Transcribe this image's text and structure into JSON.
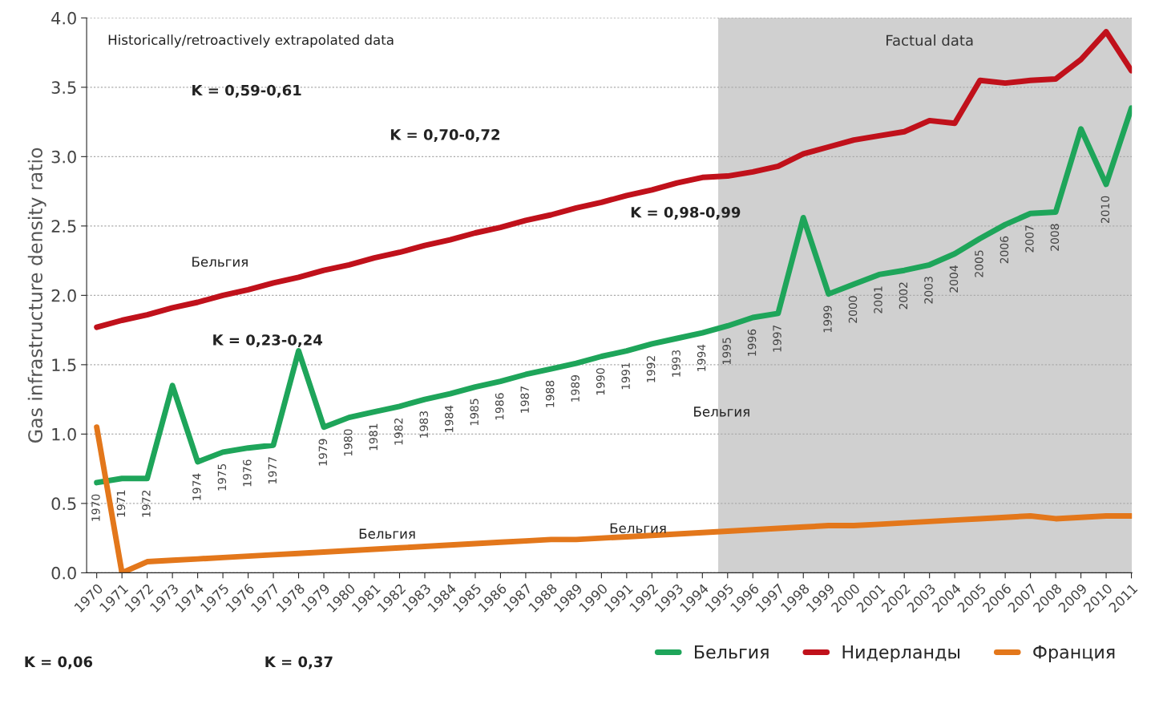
{
  "chart_data": {
    "type": "line",
    "ylabel": "Gas infrastructure density ratio",
    "categories": [
      "1970",
      "1971",
      "1972",
      "1973",
      "1974",
      "1975",
      "1976",
      "1977",
      "1978",
      "1979",
      "1980",
      "1981",
      "1982",
      "1983",
      "1984",
      "1985",
      "1986",
      "1987",
      "1988",
      "1989",
      "1990",
      "1991",
      "1992",
      "1993",
      "1994",
      "1995",
      "1996",
      "1997",
      "1998",
      "1999",
      "2000",
      "2001",
      "2002",
      "2003",
      "2004",
      "2005",
      "2006",
      "2007",
      "2008",
      "2009",
      "2010",
      "2011"
    ],
    "series": [
      {
        "name": "Бельгия",
        "color": "#1ea55a",
        "values": [
          0.65,
          0.68,
          0.68,
          1.35,
          0.8,
          0.87,
          0.9,
          0.92,
          1.6,
          1.05,
          1.12,
          1.16,
          1.2,
          1.25,
          1.29,
          1.34,
          1.38,
          1.43,
          1.47,
          1.51,
          1.56,
          1.6,
          1.65,
          1.69,
          1.73,
          1.78,
          1.84,
          1.87,
          2.56,
          2.01,
          2.08,
          2.15,
          2.18,
          2.22,
          2.3,
          2.41,
          2.51,
          2.59,
          2.6,
          3.2,
          2.8,
          3.35
        ]
      },
      {
        "name": "Нидерланды",
        "color": "#c0111b",
        "values": [
          1.77,
          1.82,
          1.86,
          1.91,
          1.95,
          2.0,
          2.04,
          2.09,
          2.13,
          2.18,
          2.22,
          2.27,
          2.31,
          2.36,
          2.4,
          2.45,
          2.49,
          2.54,
          2.58,
          2.63,
          2.67,
          2.72,
          2.76,
          2.81,
          2.85,
          2.86,
          2.89,
          2.93,
          3.02,
          3.07,
          3.12,
          3.15,
          3.18,
          3.26,
          3.24,
          3.55,
          3.53,
          3.55,
          3.56,
          3.7,
          3.9,
          3.62
        ]
      },
      {
        "name": "Франция",
        "color": "#e3771b",
        "values": [
          1.05,
          0.0,
          0.08,
          0.09,
          0.1,
          0.11,
          0.12,
          0.13,
          0.14,
          0.15,
          0.16,
          0.17,
          0.18,
          0.19,
          0.2,
          0.21,
          0.22,
          0.23,
          0.24,
          0.24,
          0.25,
          0.26,
          0.27,
          0.28,
          0.29,
          0.3,
          0.31,
          0.32,
          0.33,
          0.34,
          0.34,
          0.35,
          0.36,
          0.37,
          0.38,
          0.39,
          0.4,
          0.41,
          0.39,
          0.4,
          0.41,
          0.41
        ]
      }
    ],
    "ylim": [
      0,
      4.0
    ],
    "yticks": [
      {
        "value": 0,
        "label": "0.0"
      },
      {
        "value": 0.5,
        "label": "0.5"
      },
      {
        "value": 1.0,
        "label": "1.0"
      },
      {
        "value": 1.5,
        "label": "1.5"
      },
      {
        "value": 2.0,
        "label": "2.0"
      },
      {
        "value": 2.5,
        "label": "2.5"
      },
      {
        "value": 3.0,
        "label": "3.0"
      },
      {
        "value": 3.5,
        "label": "3.5"
      },
      {
        "value": 4.0,
        "label": "4.0"
      }
    ],
    "grid": "y",
    "legend": "bottom right",
    "bands": [
      {
        "axis": "x",
        "from": "1995",
        "to": "2011",
        "label": "Factual data",
        "color": "#c8c8c8"
      }
    ],
    "annotations": [
      "Historically/retroactively extrapolated data",
      "K = 0,59-0,61",
      "K = 0,23-0,24",
      "K = 0,70-0,72",
      "K = 0,98-0,99",
      "K = 0,06",
      "K = 0,37",
      "Бельгия",
      "Бельгия",
      "Бельгия",
      "Бельгия",
      {
        "text": "1970",
        "x": "1970",
        "y": 0.65
      },
      {
        "text": "1971",
        "x": "1971",
        "y": 0.68
      },
      {
        "text": "1972",
        "x": "1972",
        "y": 0.68
      },
      {
        "text": "1974",
        "x": "1974",
        "y": 0.8
      },
      {
        "text": "1975",
        "x": "1975",
        "y": 0.87
      },
      {
        "text": "1976",
        "x": "1976",
        "y": 0.9
      },
      {
        "text": "1977",
        "x": "1977",
        "y": 0.92
      },
      {
        "text": "1979",
        "x": "1979",
        "y": 1.05
      },
      {
        "text": "1980",
        "x": "1980",
        "y": 1.12
      },
      {
        "text": "1981",
        "x": "1981",
        "y": 1.16
      },
      {
        "text": "1982",
        "x": "1982",
        "y": 1.2
      },
      {
        "text": "1983",
        "x": "1983",
        "y": 1.25
      },
      {
        "text": "1984",
        "x": "1984",
        "y": 1.29
      },
      {
        "text": "1985",
        "x": "1985",
        "y": 1.34
      },
      {
        "text": "1986",
        "x": "1986",
        "y": 1.38
      },
      {
        "text": "1987",
        "x": "1987",
        "y": 1.43
      },
      {
        "text": "1988",
        "x": "1988",
        "y": 1.47
      },
      {
        "text": "1989",
        "x": "1989",
        "y": 1.51
      },
      {
        "text": "1990",
        "x": "1990",
        "y": 1.56
      },
      {
        "text": "1991",
        "x": "1991",
        "y": 1.6
      },
      {
        "text": "1992",
        "x": "1992",
        "y": 1.65
      },
      {
        "text": "1993",
        "x": "1993",
        "y": 1.69
      },
      {
        "text": "1994",
        "x": "1994",
        "y": 1.73
      },
      {
        "text": "1995",
        "x": "1995",
        "y": 1.78
      },
      {
        "text": "1996",
        "x": "1996",
        "y": 1.84
      },
      {
        "text": "1997",
        "x": "1997",
        "y": 1.87
      },
      {
        "text": "1999",
        "x": "1999",
        "y": 2.01
      },
      {
        "text": "2000",
        "x": "2000",
        "y": 2.08
      },
      {
        "text": "2001",
        "x": "2001",
        "y": 2.15
      },
      {
        "text": "2002",
        "x": "2002",
        "y": 2.18
      },
      {
        "text": "2003",
        "x": "2003",
        "y": 2.22
      },
      {
        "text": "2004",
        "x": "2004",
        "y": 2.3
      },
      {
        "text": "2005",
        "x": "2005",
        "y": 2.41
      },
      {
        "text": "2006",
        "x": "2006",
        "y": 2.51
      },
      {
        "text": "2007",
        "x": "2007",
        "y": 2.59
      },
      {
        "text": "2008",
        "x": "2008",
        "y": 2.6
      },
      {
        "text": "2010",
        "x": "2010",
        "y": 2.8
      }
    ]
  }
}
